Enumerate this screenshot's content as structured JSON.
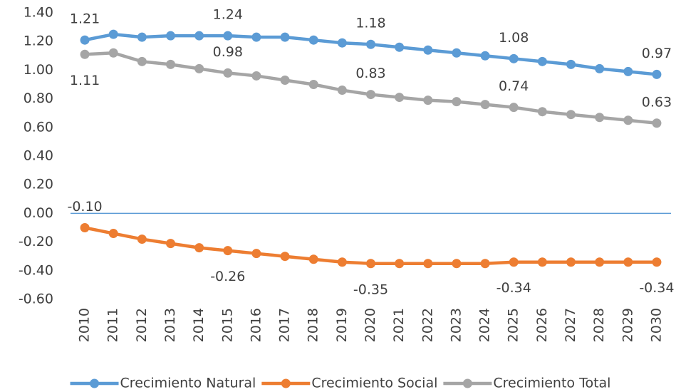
{
  "chart_data": {
    "type": "line",
    "categories": [
      "2010",
      "2011",
      "2012",
      "2013",
      "2014",
      "2015",
      "2016",
      "2017",
      "2018",
      "2019",
      "2020",
      "2021",
      "2022",
      "2023",
      "2024",
      "2025",
      "2026",
      "2027",
      "2028",
      "2029",
      "2030"
    ],
    "series": [
      {
        "name": "Crecimiento Natural",
        "color": "#5b9bd5",
        "values": [
          1.21,
          1.25,
          1.23,
          1.24,
          1.24,
          1.24,
          1.23,
          1.23,
          1.21,
          1.19,
          1.18,
          1.16,
          1.14,
          1.12,
          1.1,
          1.08,
          1.06,
          1.04,
          1.01,
          0.99,
          0.97
        ],
        "value_labels": [
          "1.21",
          null,
          null,
          null,
          null,
          "1.24",
          null,
          null,
          null,
          null,
          "1.18",
          null,
          null,
          null,
          null,
          "1.08",
          null,
          null,
          null,
          null,
          "0.97"
        ]
      },
      {
        "name": "Crecimiento Social",
        "color": "#ed7d31",
        "values": [
          -0.1,
          -0.14,
          -0.18,
          -0.21,
          -0.24,
          -0.26,
          -0.28,
          -0.3,
          -0.32,
          -0.34,
          -0.35,
          -0.35,
          -0.35,
          -0.35,
          -0.35,
          -0.34,
          -0.34,
          -0.34,
          -0.34,
          -0.34,
          -0.34
        ],
        "value_labels": [
          "-0.10",
          null,
          null,
          null,
          null,
          "-0.26",
          null,
          null,
          null,
          null,
          "-0.35",
          null,
          null,
          null,
          null,
          "-0.34",
          null,
          null,
          null,
          null,
          "-0.34"
        ]
      },
      {
        "name": "Crecimiento Total",
        "color": "#a5a5a5",
        "values": [
          1.11,
          1.12,
          1.06,
          1.04,
          1.01,
          0.98,
          0.96,
          0.93,
          0.9,
          0.86,
          0.83,
          0.81,
          0.79,
          0.78,
          0.76,
          0.74,
          0.71,
          0.69,
          0.67,
          0.65,
          0.63
        ],
        "value_labels": [
          "1.11",
          null,
          null,
          null,
          null,
          "0.98",
          null,
          null,
          null,
          null,
          "0.83",
          null,
          null,
          null,
          null,
          "0.74",
          null,
          null,
          null,
          null,
          "0.63"
        ]
      }
    ],
    "ylim": [
      -0.6,
      1.4
    ],
    "yticks": [
      {
        "value": 1.4,
        "label": "1.40"
      },
      {
        "value": 1.2,
        "label": "1.20"
      },
      {
        "value": 1,
        "label": "1.00"
      },
      {
        "value": 0.8,
        "label": "0.80"
      },
      {
        "value": 0.6,
        "label": "0.60"
      },
      {
        "value": 0.4,
        "label": "0.40"
      },
      {
        "value": 0.2,
        "label": "0.20"
      },
      {
        "value": 0,
        "label": "0.00"
      },
      {
        "value": -0.2,
        "label": "-0.20"
      },
      {
        "value": -0.4,
        "label": "-0.40"
      },
      {
        "value": -0.6,
        "label": "-0.60"
      }
    ],
    "legend": "bottom"
  }
}
